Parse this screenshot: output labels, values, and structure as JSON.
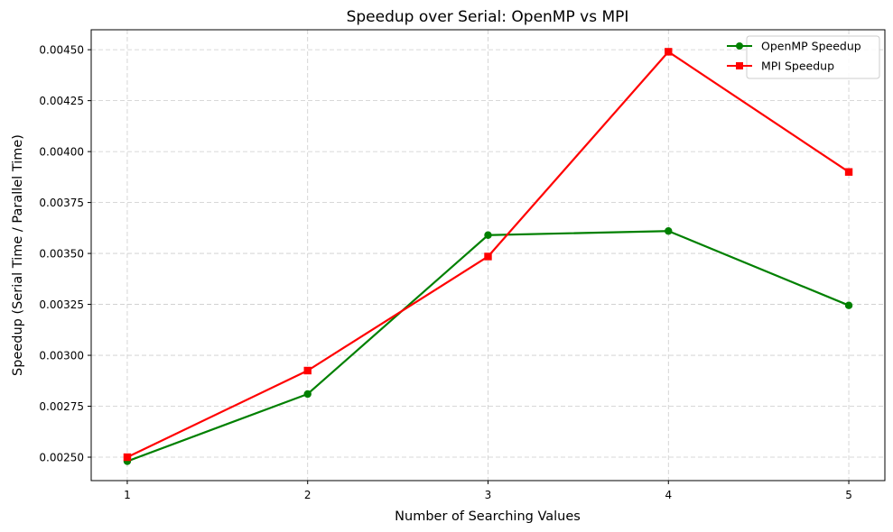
{
  "chart_data": {
    "type": "line",
    "title": "Speedup over Serial: OpenMP vs MPI",
    "xlabel": "Number of Searching Values",
    "ylabel": "Speedup (Serial Time / Parallel Time)",
    "x": [
      1,
      2,
      3,
      4,
      5
    ],
    "xticks": [
      "1",
      "2",
      "3",
      "4",
      "5"
    ],
    "xlim": [
      0.8,
      5.2
    ],
    "ylim": [
      0.002385,
      0.004598
    ],
    "yticks": [
      "0.00250",
      "0.00275",
      "0.00300",
      "0.00325",
      "0.00350",
      "0.00375",
      "0.00400",
      "0.00425",
      "0.00450"
    ],
    "grid": true,
    "legend_position": "top-right",
    "series": [
      {
        "name": "OpenMP Speedup",
        "color": "#008000",
        "marker": "circle",
        "values": [
          0.00248,
          0.00281,
          0.00359,
          0.00361,
          0.003245
        ]
      },
      {
        "name": "MPI Speedup",
        "color": "#ff0000",
        "marker": "square",
        "values": [
          0.0025,
          0.002925,
          0.003485,
          0.00449,
          0.0039
        ]
      }
    ]
  }
}
